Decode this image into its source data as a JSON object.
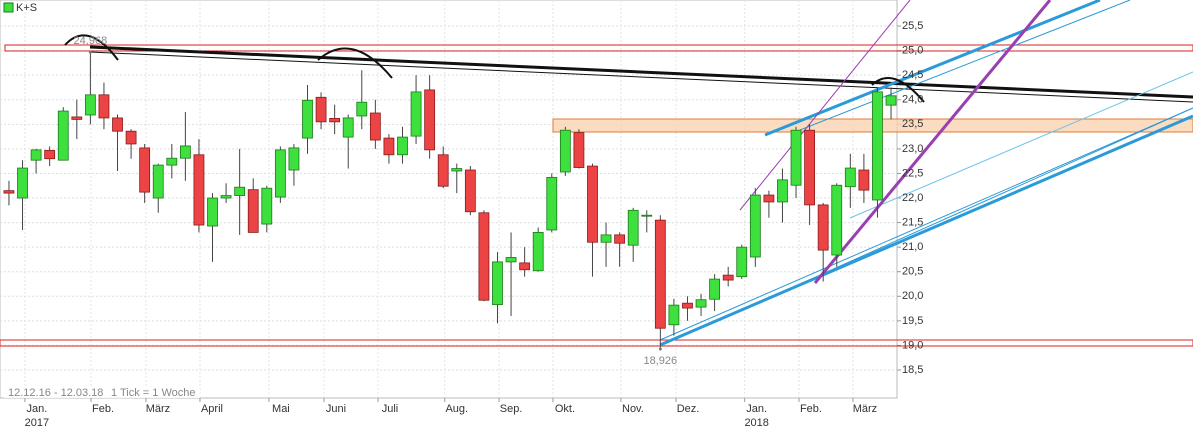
{
  "chart_data": {
    "type": "candlestick",
    "series": [
      {
        "name": "K+S",
        "up_color": "#3ee03e",
        "down_color": "#ec4444",
        "open": [
          22.15,
          22.0,
          22.77,
          22.97,
          22.77,
          23.65,
          23.69,
          24.1,
          23.63,
          23.36,
          23.02,
          22.0,
          22.67,
          22.81,
          22.88,
          21.43,
          22.0,
          22.05,
          22.17,
          21.47,
          22.02,
          22.57,
          23.22,
          24.05,
          23.62,
          23.24,
          23.67,
          23.73,
          23.22,
          22.88,
          23.26,
          24.2,
          22.88,
          22.55,
          22.57,
          21.7,
          19.83,
          20.7,
          20.68,
          20.52,
          21.35,
          22.53,
          23.33,
          22.65,
          21.1,
          21.25,
          21.04,
          21.65,
          21.55,
          19.42,
          19.86,
          19.78,
          19.94,
          20.43,
          20.4,
          20.8,
          22.06,
          21.92,
          22.26,
          23.38,
          21.86,
          20.84,
          22.23,
          22.57,
          21.96,
          23.89
        ],
        "high": [
          22.35,
          22.77,
          23.0,
          23.05,
          23.85,
          24.0,
          24.95,
          24.35,
          23.7,
          23.4,
          23.1,
          22.7,
          23.1,
          23.75,
          23.2,
          22.1,
          22.3,
          23.0,
          22.4,
          22.25,
          23.05,
          23.1,
          24.3,
          24.15,
          23.9,
          23.7,
          24.6,
          24.0,
          23.3,
          23.45,
          24.5,
          24.5,
          23.05,
          22.7,
          22.65,
          21.75,
          20.9,
          21.3,
          21.0,
          21.4,
          22.5,
          23.45,
          23.4,
          22.7,
          21.5,
          21.3,
          21.8,
          21.75,
          21.65,
          19.95,
          20.0,
          20.05,
          20.45,
          20.6,
          21.05,
          22.2,
          22.15,
          22.6,
          23.45,
          23.5,
          21.9,
          22.3,
          22.9,
          22.9,
          24.25,
          24.25
        ],
        "low": [
          21.85,
          21.35,
          22.5,
          22.65,
          22.77,
          23.2,
          23.5,
          23.4,
          22.55,
          22.8,
          21.9,
          21.7,
          22.4,
          22.35,
          21.3,
          20.7,
          21.9,
          21.25,
          21.3,
          21.3,
          21.9,
          22.25,
          22.9,
          23.4,
          23.3,
          22.6,
          23.4,
          23.0,
          22.7,
          22.7,
          23.1,
          22.8,
          22.2,
          22.1,
          21.65,
          19.9,
          19.45,
          19.6,
          20.4,
          20.5,
          21.3,
          22.45,
          22.6,
          20.4,
          20.6,
          20.6,
          20.7,
          21.3,
          18.95,
          19.2,
          19.5,
          19.6,
          19.7,
          20.2,
          20.35,
          20.6,
          21.6,
          21.5,
          22.0,
          21.45,
          20.3,
          20.6,
          21.8,
          21.9,
          21.6,
          23.6
        ],
        "close": [
          22.1,
          22.61,
          22.98,
          22.8,
          23.77,
          23.6,
          24.1,
          23.63,
          23.36,
          23.1,
          22.12,
          22.67,
          22.81,
          23.06,
          21.45,
          22.0,
          22.05,
          22.22,
          21.3,
          22.2,
          22.98,
          23.02,
          23.99,
          23.55,
          23.55,
          23.63,
          23.95,
          23.18,
          22.88,
          23.24,
          24.16,
          22.98,
          22.24,
          22.6,
          21.72,
          19.92,
          20.7,
          20.79,
          20.54,
          21.3,
          22.42,
          23.38,
          22.62,
          21.1,
          21.25,
          21.08,
          21.75,
          21.65,
          19.35,
          19.82,
          19.76,
          19.93,
          20.35,
          20.33,
          21.0,
          22.06,
          21.92,
          22.37,
          23.38,
          21.86,
          20.94,
          22.26,
          22.61,
          22.16,
          24.16,
          24.08
        ]
      }
    ],
    "xlim": [
      -0.66,
      65.44
    ],
    "xticks": [
      {
        "value": 2.06,
        "label": "Jan."
      },
      {
        "value": 6.93,
        "label": "Feb."
      },
      {
        "value": 10.98,
        "label": "März"
      },
      {
        "value": 14.96,
        "label": "April"
      },
      {
        "value": 20.04,
        "label": "Mai"
      },
      {
        "value": 24.1,
        "label": "Juni"
      },
      {
        "value": 28.08,
        "label": "Juli"
      },
      {
        "value": 33.0,
        "label": "Aug."
      },
      {
        "value": 37.0,
        "label": "Sep."
      },
      {
        "value": 40.97,
        "label": "Okt."
      },
      {
        "value": 45.98,
        "label": "Nov."
      },
      {
        "value": 50.04,
        "label": "Dez."
      },
      {
        "value": 55.1,
        "label": "Jan."
      },
      {
        "value": 59.1,
        "label": "Feb."
      },
      {
        "value": 63.08,
        "label": "März"
      }
    ],
    "year_labels": [
      {
        "value": 2.06,
        "label": "2017"
      },
      {
        "value": 55.1,
        "label": "2018"
      }
    ],
    "ylim": [
      17.93,
      26.03
    ],
    "yticks": [
      {
        "value": 18.5,
        "label": "18,5"
      },
      {
        "value": 19,
        "label": "19,0"
      },
      {
        "value": 19.5,
        "label": "19,5"
      },
      {
        "value": 20,
        "label": "20,0"
      },
      {
        "value": 20.5,
        "label": "20,5"
      },
      {
        "value": 21,
        "label": "21,0"
      },
      {
        "value": 21.5,
        "label": "21,5"
      },
      {
        "value": 22,
        "label": "22,0"
      },
      {
        "value": 22.5,
        "label": "22,5"
      },
      {
        "value": 23,
        "label": "23,0"
      },
      {
        "value": 23.5,
        "label": "23,5"
      },
      {
        "value": 24,
        "label": "24,0"
      },
      {
        "value": 24.5,
        "label": "24,5"
      },
      {
        "value": 25,
        "label": "25,0"
      },
      {
        "value": 25.5,
        "label": "25,5"
      }
    ],
    "annotations": [
      {
        "x": 6,
        "value": 24.968,
        "label": "24,968"
      },
      {
        "x": 48,
        "value": 18.926,
        "label": "18,926"
      }
    ],
    "range_label": "12.12.16 - 12.03.18",
    "interval_label": "1 Tick = 1 Woche",
    "grid": true
  }
}
